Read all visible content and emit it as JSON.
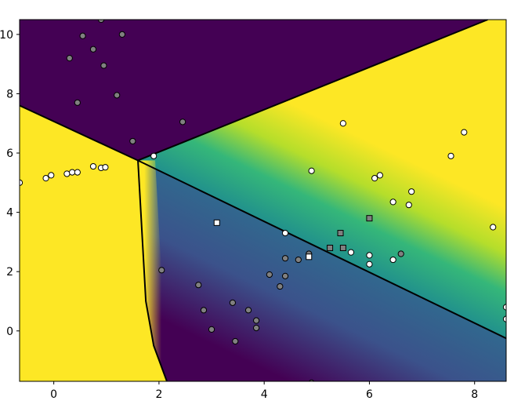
{
  "chart_data": {
    "type": "scatter",
    "title": "",
    "xlabel": "",
    "ylabel": "",
    "xlim": [
      -0.65,
      8.6
    ],
    "ylim": [
      -1.7,
      10.5
    ],
    "x_ticks": [
      0,
      2,
      4,
      6,
      8
    ],
    "y_ticks": [
      0,
      2,
      4,
      6,
      8,
      10
    ],
    "x_tick_labels": [
      "0",
      "2",
      "4",
      "6",
      "8"
    ],
    "y_tick_labels": [
      "0",
      "2",
      "4",
      "6",
      "8",
      "10"
    ],
    "grid": false,
    "legend": "none",
    "colors": {
      "dark": "#440154",
      "bright": "#fde725",
      "class_white": "#ffffff",
      "class_gray": "#808080",
      "marker_edge": "#000000",
      "boundary": "#000000"
    },
    "background_regions": [
      {
        "name": "upper",
        "color": "dark"
      },
      {
        "name": "left",
        "color": "bright"
      },
      {
        "name": "right",
        "color": "bright",
        "gradient": "fades to teal toward lower boundary"
      },
      {
        "name": "lower",
        "color": "dark",
        "gradient": "fades to teal toward upper boundary"
      }
    ],
    "decision_boundaries": [
      {
        "name": "left-upper",
        "points": [
          [
            -0.65,
            7.6
          ],
          [
            1.6,
            5.75
          ]
        ]
      },
      {
        "name": "upper-right",
        "points": [
          [
            1.6,
            5.75
          ],
          [
            8.25,
            10.5
          ]
        ]
      },
      {
        "name": "right-lower",
        "points": [
          [
            1.6,
            5.75
          ],
          [
            8.6,
            -0.25
          ]
        ]
      },
      {
        "name": "left-lower",
        "points": [
          [
            1.6,
            5.75
          ],
          [
            1.75,
            1.0
          ],
          [
            1.9,
            -0.5
          ],
          [
            2.15,
            -1.7
          ]
        ]
      }
    ],
    "series": [
      {
        "marker": "circle",
        "color": "class_gray",
        "points": [
          [
            0.55,
            9.95
          ],
          [
            0.3,
            9.2
          ],
          [
            0.75,
            9.5
          ],
          [
            0.95,
            8.95
          ],
          [
            1.3,
            10.0
          ],
          [
            0.9,
            10.5
          ],
          [
            0.45,
            7.7
          ],
          [
            1.2,
            7.95
          ],
          [
            1.5,
            6.4
          ],
          [
            2.45,
            7.05
          ],
          [
            2.05,
            2.05
          ],
          [
            2.75,
            1.55
          ],
          [
            2.85,
            0.7
          ],
          [
            3.0,
            0.05
          ],
          [
            3.4,
            0.95
          ],
          [
            3.45,
            -0.35
          ],
          [
            3.7,
            0.7
          ],
          [
            3.85,
            0.35
          ],
          [
            3.85,
            0.1
          ],
          [
            4.1,
            1.9
          ],
          [
            4.3,
            1.5
          ],
          [
            4.4,
            1.85
          ],
          [
            4.4,
            2.45
          ],
          [
            4.65,
            2.4
          ],
          [
            4.85,
            2.6
          ],
          [
            4.9,
            -1.75
          ],
          [
            6.6,
            2.6
          ]
        ]
      },
      {
        "marker": "circle",
        "color": "class_white",
        "points": [
          [
            -0.65,
            5.0
          ],
          [
            -0.15,
            5.15
          ],
          [
            -0.05,
            5.25
          ],
          [
            0.25,
            5.3
          ],
          [
            0.35,
            5.35
          ],
          [
            0.45,
            5.35
          ],
          [
            0.75,
            5.55
          ],
          [
            0.9,
            5.5
          ],
          [
            0.98,
            5.52
          ],
          [
            1.9,
            5.9
          ],
          [
            4.4,
            3.3
          ],
          [
            4.9,
            5.4
          ],
          [
            5.5,
            7.0
          ],
          [
            5.65,
            2.65
          ],
          [
            6.0,
            2.55
          ],
          [
            6.0,
            2.25
          ],
          [
            6.1,
            5.15
          ],
          [
            6.2,
            5.25
          ],
          [
            6.45,
            4.35
          ],
          [
            6.45,
            2.4
          ],
          [
            6.75,
            4.25
          ],
          [
            6.8,
            4.7
          ],
          [
            7.55,
            5.9
          ],
          [
            7.8,
            6.7
          ],
          [
            8.35,
            3.5
          ],
          [
            8.6,
            0.8
          ],
          [
            8.6,
            0.4
          ]
        ]
      },
      {
        "marker": "square",
        "color": "class_white",
        "points": [
          [
            3.1,
            3.65
          ],
          [
            4.85,
            2.5
          ]
        ]
      },
      {
        "marker": "square",
        "color": "class_gray",
        "points": [
          [
            5.25,
            2.8
          ],
          [
            5.45,
            3.3
          ],
          [
            5.5,
            2.8
          ],
          [
            6.0,
            3.8
          ]
        ]
      }
    ]
  }
}
